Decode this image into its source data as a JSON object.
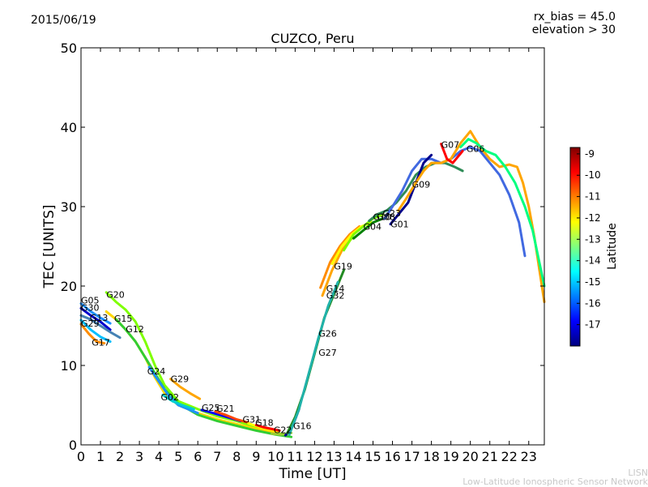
{
  "header": {
    "date": "2015/06/19",
    "rx_bias": "rx_bias = 45.0",
    "elevation": "elevation > 30"
  },
  "footer": {
    "line1": "LISN",
    "line2": "Low-Latitude Ionospheric Sensor Network"
  },
  "chart_data": {
    "type": "line",
    "title": "CUZCO, Peru",
    "xlabel": "Time [UT]",
    "ylabel": "TEC [UNITS]",
    "xlim": [
      0,
      23.8
    ],
    "ylim": [
      0,
      50
    ],
    "xticks": [
      "0",
      "1",
      "2",
      "3",
      "4",
      "5",
      "6",
      "7",
      "8",
      "9",
      "10",
      "11",
      "12",
      "13",
      "14",
      "15",
      "16",
      "17",
      "18",
      "19",
      "20",
      "21",
      "22",
      "23"
    ],
    "yticks": [
      "0",
      "10",
      "20",
      "30",
      "40",
      "50"
    ],
    "colorbar": {
      "label": "Latitude",
      "range": [
        -18,
        -8.7
      ],
      "ticks": [
        "-9",
        "-10",
        "-11",
        "-12",
        "-13",
        "-14",
        "-15",
        "-16",
        "-17"
      ],
      "colors": [
        "#00007f",
        "#0000ff",
        "#007fff",
        "#00ffff",
        "#7fff7f",
        "#ffff00",
        "#ff7f00",
        "#ff0000",
        "#7f0000"
      ]
    },
    "series": [
      {
        "name": "G05",
        "color": "#1e90ff",
        "points": [
          [
            0,
            17.8
          ],
          [
            0.5,
            16.8
          ],
          [
            1,
            16
          ],
          [
            1.5,
            15.3
          ]
        ]
      },
      {
        "name": "G30",
        "color": "#0000cd",
        "points": [
          [
            0,
            17.2
          ],
          [
            0.5,
            16.3
          ],
          [
            1,
            15.5
          ],
          [
            1.5,
            14.5
          ]
        ]
      },
      {
        "name": "G13",
        "color": "#4682b4",
        "points": [
          [
            0,
            16.3
          ],
          [
            0.5,
            15.8
          ],
          [
            1,
            15
          ],
          [
            1.5,
            14.2
          ],
          [
            2,
            13.5
          ]
        ]
      },
      {
        "name": "G29",
        "color": "#00bfff",
        "points": [
          [
            0,
            15.7
          ],
          [
            0.5,
            14.5
          ],
          [
            1,
            13.6
          ],
          [
            1.5,
            13
          ]
        ]
      },
      {
        "name": "G17",
        "color": "#ff8c00",
        "points": [
          [
            0,
            15.2
          ],
          [
            0.4,
            14
          ],
          [
            0.8,
            13
          ],
          [
            1.2,
            12.8
          ]
        ]
      },
      {
        "name": "G20",
        "color": "#7fff00",
        "points": [
          [
            1.3,
            19.2
          ],
          [
            1.8,
            18
          ],
          [
            2.3,
            17
          ],
          [
            2.8,
            15.5
          ],
          [
            3.3,
            13
          ],
          [
            3.8,
            10
          ],
          [
            4.3,
            7.5
          ],
          [
            5,
            5.5
          ],
          [
            6,
            4.5
          ],
          [
            7,
            3.6
          ],
          [
            8,
            3
          ],
          [
            9,
            2.2
          ],
          [
            10,
            1.5
          ],
          [
            10.5,
            1.3
          ]
        ]
      },
      {
        "name": "G15",
        "color": "#ffd700",
        "points": [
          [
            1.3,
            16.8
          ],
          [
            1.8,
            15.8
          ],
          [
            2.3,
            14.5
          ],
          [
            2.8,
            13
          ],
          [
            3.3,
            11
          ],
          [
            3.8,
            8.5
          ],
          [
            4.3,
            6.5
          ],
          [
            5,
            5
          ],
          [
            6,
            4
          ],
          [
            7,
            3.2
          ],
          [
            8,
            2.6
          ],
          [
            9,
            2
          ],
          [
            10,
            1.5
          ]
        ]
      },
      {
        "name": "G12",
        "color": "#32cd32",
        "points": [
          [
            1.8,
            15.8
          ],
          [
            2.3,
            14.5
          ],
          [
            2.8,
            13
          ],
          [
            3.3,
            11
          ],
          [
            3.8,
            9
          ],
          [
            4.3,
            7
          ],
          [
            5,
            5.2
          ],
          [
            6,
            3.8
          ],
          [
            7,
            3
          ],
          [
            8,
            2.4
          ],
          [
            9,
            1.8
          ],
          [
            10,
            1.3
          ],
          [
            10.8,
            1
          ]
        ]
      },
      {
        "name": "G24",
        "color": "#1e90ff",
        "points": [
          [
            3.5,
            9.8
          ],
          [
            4,
            8
          ],
          [
            4.5,
            6.2
          ],
          [
            5,
            5
          ],
          [
            5.5,
            4.5
          ],
          [
            6,
            4
          ]
        ]
      },
      {
        "name": "G02",
        "color": "#00ced1",
        "points": [
          [
            4.2,
            6.3
          ],
          [
            4.7,
            5.5
          ],
          [
            5.2,
            5
          ],
          [
            5.8,
            4.5
          ]
        ]
      },
      {
        "name": "G29",
        "color": "#ffa500",
        "points": [
          [
            4.6,
            8.3
          ],
          [
            5.1,
            7.3
          ],
          [
            5.6,
            6.5
          ],
          [
            6.1,
            5.8
          ]
        ]
      },
      {
        "name": "G25",
        "color": "#0000ff",
        "points": [
          [
            6.2,
            4.4
          ],
          [
            6.8,
            4
          ],
          [
            7.5,
            3.5
          ],
          [
            8.2,
            3
          ]
        ]
      },
      {
        "name": "G21",
        "color": "#ff4500",
        "points": [
          [
            6.9,
            4.2
          ],
          [
            7.4,
            3.8
          ],
          [
            8,
            3.2
          ],
          [
            8.6,
            2.8
          ]
        ]
      },
      {
        "name": "G31",
        "color": "#ffff00",
        "points": [
          [
            8.6,
            2.7
          ],
          [
            9.1,
            2.3
          ],
          [
            9.6,
            2
          ],
          [
            10.1,
            1.7
          ]
        ]
      },
      {
        "name": "G18",
        "color": "#ff0000",
        "points": [
          [
            9,
            2.5
          ],
          [
            9.4,
            2.2
          ],
          [
            9.8,
            2
          ],
          [
            10.2,
            1.8
          ]
        ]
      },
      {
        "name": "G22",
        "color": "#9acd32",
        "points": [
          [
            9.8,
            1.4
          ],
          [
            10.3,
            1.3
          ],
          [
            10.8,
            1.5
          ]
        ]
      },
      {
        "name": "G16",
        "color": "#00008b",
        "points": [
          [
            10.5,
            1.2
          ],
          [
            10.8,
            2
          ],
          [
            11,
            3.2
          ],
          [
            11.2,
            4.5
          ]
        ]
      },
      {
        "name": "G27",
        "color": "#228b22",
        "points": [
          [
            10.6,
            1.5
          ],
          [
            11,
            3.5
          ],
          [
            11.5,
            7
          ],
          [
            12,
            11.5
          ],
          [
            12.5,
            16
          ],
          [
            13,
            19
          ],
          [
            13.5,
            22
          ]
        ]
      },
      {
        "name": "G26",
        "color": "#20b2aa",
        "points": [
          [
            10.7,
            1.3
          ],
          [
            11.2,
            4.5
          ],
          [
            11.7,
            9
          ],
          [
            12.2,
            13.5
          ],
          [
            12.7,
            17.5
          ],
          [
            13.2,
            20.5
          ]
        ]
      },
      {
        "name": "G14",
        "color": "#ff8c00",
        "points": [
          [
            12.3,
            19.8
          ],
          [
            12.8,
            23
          ],
          [
            13.3,
            25
          ],
          [
            13.8,
            26.5
          ],
          [
            14.3,
            27.5
          ]
        ]
      },
      {
        "name": "G32",
        "color": "#ffa500",
        "points": [
          [
            12.4,
            18.8
          ],
          [
            12.9,
            22
          ],
          [
            13.4,
            24.5
          ],
          [
            13.9,
            26
          ]
        ]
      },
      {
        "name": "G19",
        "color": "#ffff00",
        "points": [
          [
            12.9,
            22.8
          ],
          [
            13.4,
            25
          ],
          [
            13.9,
            26.5
          ],
          [
            14.4,
            27.5
          ],
          [
            14.9,
            28
          ]
        ]
      },
      {
        "name": "G10",
        "color": "#7cfc00",
        "points": [
          [
            13.5,
            24.5
          ],
          [
            14,
            26.5
          ],
          [
            14.5,
            27.5
          ],
          [
            15,
            28.5
          ],
          [
            15.5,
            29
          ]
        ]
      },
      {
        "name": "G04",
        "color": "#008000",
        "points": [
          [
            14,
            26
          ],
          [
            14.5,
            27
          ],
          [
            15,
            28
          ],
          [
            15.5,
            28.5
          ]
        ]
      },
      {
        "name": "G08",
        "color": "#2e8b57",
        "points": [
          [
            14.8,
            28.2
          ],
          [
            15.2,
            29
          ],
          [
            15.7,
            29.5
          ],
          [
            16.2,
            30.5
          ],
          [
            16.7,
            32
          ],
          [
            17.2,
            34
          ],
          [
            17.7,
            35
          ],
          [
            18.2,
            35.5
          ],
          [
            18.7,
            35.5
          ],
          [
            19.2,
            35
          ],
          [
            19.6,
            34.5
          ]
        ]
      },
      {
        "name": "G23",
        "color": "#4169e1",
        "points": [
          [
            15.6,
            28.5
          ],
          [
            16,
            30
          ],
          [
            16.5,
            32
          ],
          [
            17,
            34.5
          ],
          [
            17.5,
            36
          ],
          [
            18,
            36
          ],
          [
            18.5,
            35.5
          ],
          [
            19,
            36
          ],
          [
            19.5,
            37
          ],
          [
            20,
            37.5
          ],
          [
            20.5,
            37
          ],
          [
            21,
            35.5
          ],
          [
            21.5,
            34
          ],
          [
            22,
            31.5
          ],
          [
            22.5,
            28
          ],
          [
            22.8,
            23.8
          ]
        ]
      },
      {
        "name": "G01",
        "color": "#00008b",
        "points": [
          [
            15.9,
            27.8
          ],
          [
            16.3,
            29
          ],
          [
            16.8,
            30.5
          ],
          [
            17.2,
            33
          ],
          [
            17.6,
            35.5
          ],
          [
            18,
            36.5
          ]
        ]
      },
      {
        "name": "G09",
        "color": "#ffa500",
        "points": [
          [
            16.3,
            29.5
          ],
          [
            16.7,
            31
          ],
          [
            17.2,
            33
          ],
          [
            17.6,
            34.5
          ],
          [
            18,
            35.5
          ],
          [
            18.5,
            35.5
          ],
          [
            19,
            36
          ],
          [
            19.5,
            38
          ],
          [
            20,
            39.5
          ],
          [
            20.5,
            37.5
          ],
          [
            21,
            36
          ],
          [
            21.5,
            35
          ],
          [
            22,
            35.3
          ],
          [
            22.4,
            35
          ],
          [
            22.7,
            33
          ],
          [
            23,
            30
          ],
          [
            23.3,
            26
          ],
          [
            23.8,
            18
          ]
        ]
      },
      {
        "name": "G07",
        "color": "#ff0000",
        "points": [
          [
            18.5,
            37.9
          ],
          [
            18.8,
            36
          ],
          [
            19.1,
            35.5
          ],
          [
            19.6,
            37
          ]
        ]
      },
      {
        "name": "G06",
        "color": "#00ff7f",
        "points": [
          [
            19.5,
            37.5
          ],
          [
            19.9,
            38.5
          ],
          [
            20.3,
            38
          ],
          [
            20.8,
            37
          ],
          [
            21.3,
            36.5
          ],
          [
            21.8,
            35
          ],
          [
            22.3,
            33
          ],
          [
            22.8,
            30
          ],
          [
            23.2,
            27
          ],
          [
            23.8,
            20
          ]
        ]
      }
    ],
    "annotations": [
      {
        "text": "G05",
        "x": 0.0,
        "y": 17.8
      },
      {
        "text": "G30",
        "x": 0.0,
        "y": 16.9
      },
      {
        "text": "G13",
        "x": 0.45,
        "y": 15.6
      },
      {
        "text": "G29",
        "x": 0.0,
        "y": 14.9
      },
      {
        "text": "G17",
        "x": 0.55,
        "y": 12.5
      },
      {
        "text": "G20",
        "x": 1.3,
        "y": 18.5
      },
      {
        "text": "G15",
        "x": 1.7,
        "y": 15.5
      },
      {
        "text": "G12",
        "x": 2.3,
        "y": 14.2
      },
      {
        "text": "G24",
        "x": 3.4,
        "y": 8.9
      },
      {
        "text": "G29",
        "x": 4.6,
        "y": 7.9
      },
      {
        "text": "G02",
        "x": 4.1,
        "y": 5.6
      },
      {
        "text": "G25",
        "x": 6.2,
        "y": 4.3
      },
      {
        "text": "G21",
        "x": 6.95,
        "y": 4.2
      },
      {
        "text": "G31",
        "x": 8.3,
        "y": 2.8
      },
      {
        "text": "G18",
        "x": 8.95,
        "y": 2.4
      },
      {
        "text": "G22",
        "x": 9.9,
        "y": 1.5
      },
      {
        "text": "G16",
        "x": 10.9,
        "y": 2.0
      },
      {
        "text": "G26",
        "x": 12.2,
        "y": 13.6
      },
      {
        "text": "G27",
        "x": 12.2,
        "y": 11.2
      },
      {
        "text": "G14",
        "x": 12.6,
        "y": 19.3
      },
      {
        "text": "G32",
        "x": 12.6,
        "y": 18.4
      },
      {
        "text": "G19",
        "x": 13.0,
        "y": 22.1
      },
      {
        "text": "G04",
        "x": 14.5,
        "y": 27.1
      },
      {
        "text": "G10",
        "x": 15.0,
        "y": 28.3
      },
      {
        "text": "G08",
        "x": 15.2,
        "y": 28.3
      },
      {
        "text": "G23",
        "x": 15.5,
        "y": 28.8
      },
      {
        "text": "G01",
        "x": 15.9,
        "y": 27.4
      },
      {
        "text": "G09",
        "x": 17.0,
        "y": 32.4
      },
      {
        "text": "G07",
        "x": 18.5,
        "y": 37.4
      },
      {
        "text": "G06",
        "x": 19.8,
        "y": 36.9
      }
    ]
  }
}
